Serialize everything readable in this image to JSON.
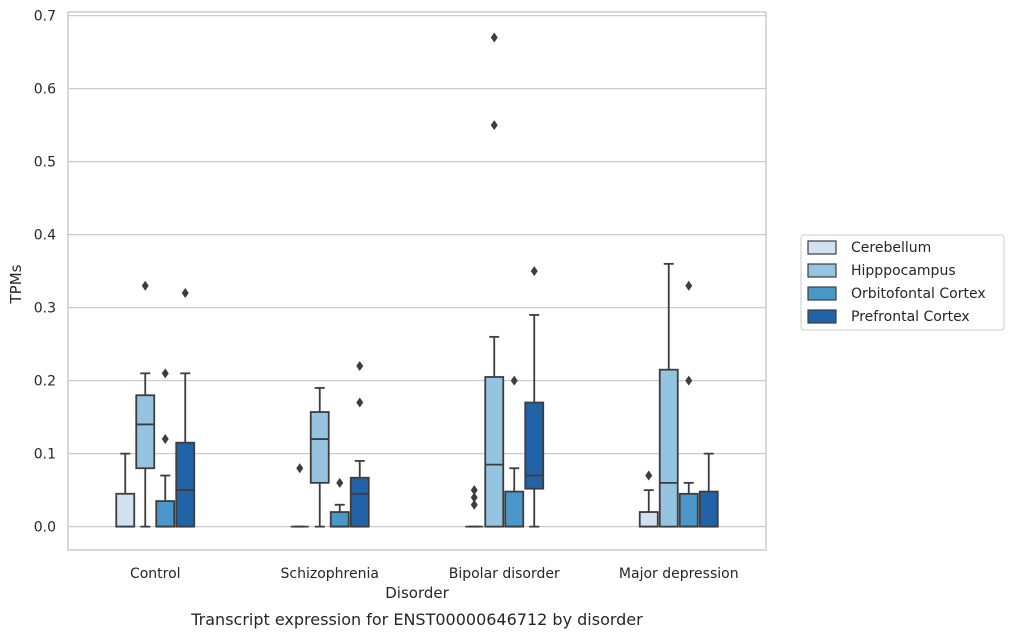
{
  "chart_data": {
    "type": "box",
    "xlabel": "Disorder",
    "ylabel": "TPMs",
    "caption": "Transcript expression for ENST00000646712 by disorder",
    "ylim": [
      -0.032,
      0.705
    ],
    "yticks": [
      0.0,
      0.1,
      0.2,
      0.3,
      0.4,
      0.5,
      0.6,
      0.7
    ],
    "ytick_labels": [
      "0.0",
      "0.1",
      "0.2",
      "0.3",
      "0.4",
      "0.5",
      "0.6",
      "0.7"
    ],
    "grid": "horizontal",
    "legend_position": "right",
    "categories": [
      "Control",
      "Schizophrenia",
      "Bipolar disorder",
      "Major depression"
    ],
    "series": [
      {
        "name": "Cerebellum",
        "color": "#d0e1f2",
        "boxes": [
          {
            "q1": 0.0,
            "median": 0.0,
            "q3": 0.045,
            "whisker_low": 0.0,
            "whisker_high": 0.1,
            "outliers": []
          },
          {
            "q1": 0.0,
            "median": 0.0,
            "q3": 0.0,
            "whisker_low": 0.0,
            "whisker_high": 0.0,
            "outliers": [
              0.08
            ]
          },
          {
            "q1": 0.0,
            "median": 0.0,
            "q3": 0.0,
            "whisker_low": 0.0,
            "whisker_high": 0.0,
            "outliers": [
              0.03,
              0.04,
              0.05
            ]
          },
          {
            "q1": 0.0,
            "median": 0.0,
            "q3": 0.02,
            "whisker_low": 0.0,
            "whisker_high": 0.05,
            "outliers": [
              0.07
            ]
          }
        ]
      },
      {
        "name": "Hipppocampus",
        "color": "#94c4df",
        "boxes": [
          {
            "q1": 0.08,
            "median": 0.14,
            "q3": 0.18,
            "whisker_low": 0.0,
            "whisker_high": 0.21,
            "outliers": [
              0.33
            ]
          },
          {
            "q1": 0.06,
            "median": 0.12,
            "q3": 0.157,
            "whisker_low": 0.0,
            "whisker_high": 0.19,
            "outliers": []
          },
          {
            "q1": 0.0,
            "median": 0.085,
            "q3": 0.205,
            "whisker_low": 0.0,
            "whisker_high": 0.26,
            "outliers": [
              0.55,
              0.67
            ]
          },
          {
            "q1": 0.0,
            "median": 0.06,
            "q3": 0.215,
            "whisker_low": 0.0,
            "whisker_high": 0.36,
            "outliers": []
          }
        ]
      },
      {
        "name": "Orbitofontal Cortex",
        "color": "#4a98c9",
        "boxes": [
          {
            "q1": 0.0,
            "median": 0.0,
            "q3": 0.035,
            "whisker_low": 0.0,
            "whisker_high": 0.07,
            "outliers": [
              0.12,
              0.21
            ]
          },
          {
            "q1": 0.0,
            "median": 0.0,
            "q3": 0.02,
            "whisker_low": 0.0,
            "whisker_high": 0.03,
            "outliers": [
              0.06
            ]
          },
          {
            "q1": 0.0,
            "median": 0.0,
            "q3": 0.048,
            "whisker_low": 0.0,
            "whisker_high": 0.08,
            "outliers": [
              0.2
            ]
          },
          {
            "q1": 0.0,
            "median": 0.0,
            "q3": 0.045,
            "whisker_low": 0.0,
            "whisker_high": 0.06,
            "outliers": [
              0.2,
              0.33
            ]
          }
        ]
      },
      {
        "name": "Prefrontal Cortex",
        "color": "#2263a8",
        "boxes": [
          {
            "q1": 0.0,
            "median": 0.05,
            "q3": 0.115,
            "whisker_low": 0.0,
            "whisker_high": 0.21,
            "outliers": [
              0.32
            ]
          },
          {
            "q1": 0.0,
            "median": 0.045,
            "q3": 0.067,
            "whisker_low": 0.0,
            "whisker_high": 0.09,
            "outliers": [
              0.17,
              0.22
            ]
          },
          {
            "q1": 0.052,
            "median": 0.07,
            "q3": 0.17,
            "whisker_low": 0.0,
            "whisker_high": 0.29,
            "outliers": [
              0.35
            ]
          },
          {
            "q1": 0.0,
            "median": 0.0,
            "q3": 0.048,
            "whisker_low": 0.0,
            "whisker_high": 0.1,
            "outliers": []
          }
        ]
      }
    ]
  }
}
